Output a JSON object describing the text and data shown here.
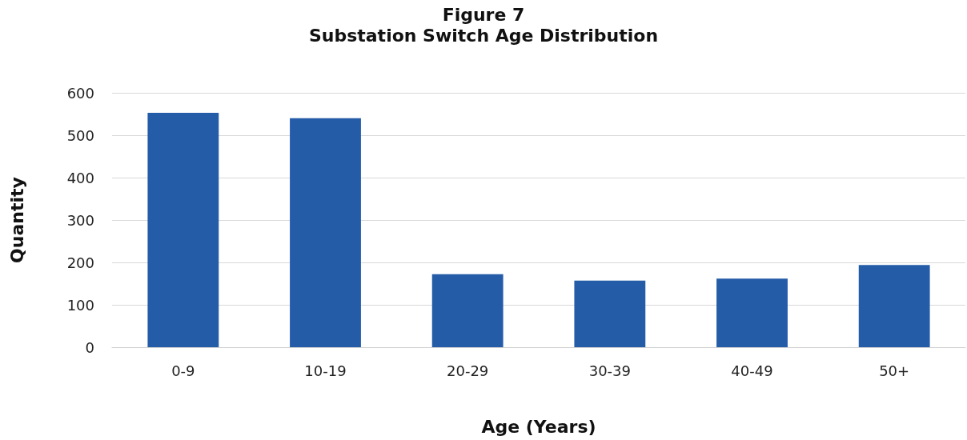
{
  "chart_data": {
    "type": "bar",
    "title": "Figure 7",
    "subtitle": "Substation Switch Age Distribution",
    "xlabel": "Age (Years)",
    "ylabel": "Quantity",
    "categories": [
      "0-9",
      "10-19",
      "20-29",
      "30-39",
      "40-49",
      "50+"
    ],
    "values": [
      553,
      540,
      172,
      157,
      162,
      194
    ],
    "color": "#245ca8",
    "ylim": [
      0,
      600
    ],
    "yticks": [
      0,
      100,
      200,
      300,
      400,
      500,
      600
    ],
    "grid": "y"
  }
}
